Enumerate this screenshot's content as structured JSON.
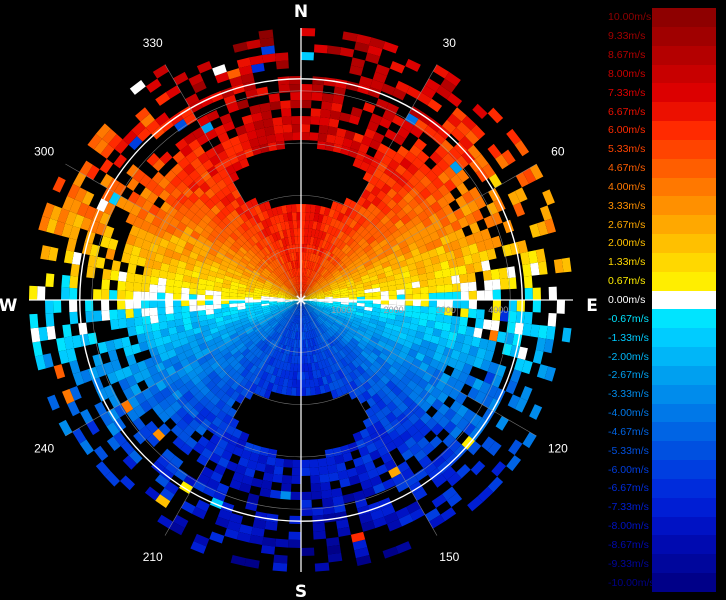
{
  "chart_data": {
    "type": "heatmap",
    "subtype": "polar-radial-velocity-ppi",
    "compass_labels": {
      "north": "N",
      "east": "E",
      "south": "S",
      "west": "W"
    },
    "azimuth_labels": [
      "30",
      "60",
      "120",
      "150",
      "210",
      "240",
      "300",
      "330"
    ],
    "azimuth_label_values": [
      30,
      60,
      120,
      150,
      210,
      240,
      300,
      330
    ],
    "range_labels": [
      "1000",
      "2000",
      "3000",
      "4000"
    ],
    "range_values": [
      1000,
      2000,
      3000,
      4000
    ],
    "max_range": 5200,
    "color_scale": [
      {
        "label": "10.00m/s",
        "value": 10.0,
        "color": "#8e0000"
      },
      {
        "label": "9.33m/s",
        "value": 9.33,
        "color": "#a00000"
      },
      {
        "label": "8.67m/s",
        "value": 8.67,
        "color": "#b40000"
      },
      {
        "label": "8.00m/s",
        "value": 8.0,
        "color": "#c80000"
      },
      {
        "label": "7.33m/s",
        "value": 7.33,
        "color": "#dc0000"
      },
      {
        "label": "6.67m/s",
        "value": 6.67,
        "color": "#ec1000"
      },
      {
        "label": "6.00m/s",
        "value": 6.0,
        "color": "#ff2a00"
      },
      {
        "label": "5.33m/s",
        "value": 5.33,
        "color": "#ff4400"
      },
      {
        "label": "4.67m/s",
        "value": 4.67,
        "color": "#ff5e00"
      },
      {
        "label": "4.00m/s",
        "value": 4.0,
        "color": "#ff7800"
      },
      {
        "label": "3.33m/s",
        "value": 3.33,
        "color": "#ff9000"
      },
      {
        "label": "2.67m/s",
        "value": 2.67,
        "color": "#ffa800"
      },
      {
        "label": "2.00m/s",
        "value": 2.0,
        "color": "#ffc000"
      },
      {
        "label": "1.33m/s",
        "value": 1.33,
        "color": "#ffd800"
      },
      {
        "label": "0.67m/s",
        "value": 0.67,
        "color": "#ffee00"
      },
      {
        "label": "0.00m/s",
        "value": 0.0,
        "color": "#ffffff"
      },
      {
        "label": "-0.67m/s",
        "value": -0.67,
        "color": "#00e4ff"
      },
      {
        "label": "-1.33m/s",
        "value": -1.33,
        "color": "#00ccff"
      },
      {
        "label": "-2.00m/s",
        "value": -2.0,
        "color": "#00b6f8"
      },
      {
        "label": "-2.67m/s",
        "value": -2.67,
        "color": "#00a0f0"
      },
      {
        "label": "-3.33m/s",
        "value": -3.33,
        "color": "#008cec"
      },
      {
        "label": "-4.00m/s",
        "value": -4.0,
        "color": "#0078e8"
      },
      {
        "label": "-4.67m/s",
        "value": -4.67,
        "color": "#0064e4"
      },
      {
        "label": "-5.33m/s",
        "value": -5.33,
        "color": "#0050e0"
      },
      {
        "label": "-6.00m/s",
        "value": -6.0,
        "color": "#003ee0"
      },
      {
        "label": "-6.67m/s",
        "value": -6.67,
        "color": "#002cdc"
      },
      {
        "label": "-7.33m/s",
        "value": -7.33,
        "color": "#001ed4"
      },
      {
        "label": "-8.00m/s",
        "value": -8.0,
        "color": "#0012c4"
      },
      {
        "label": "-8.67m/s",
        "value": -8.67,
        "color": "#000ab0"
      },
      {
        "label": "-9.33m/s",
        "value": -9.33,
        "color": "#00069c"
      },
      {
        "label": "-10.00m/s",
        "value": -10.0,
        "color": "#000088"
      }
    ],
    "velocity_field": {
      "description_values": "radial velocity ~ +9 m/s toward north, ~ -9 m/s toward south, zero line along west-east",
      "peak_velocity": 9.0,
      "no_data_regions": [
        {
          "center_azimuth": 0,
          "center_range": 2400,
          "azimuth_halfwidth": 30,
          "range_halfwidth": 600
        },
        {
          "center_azimuth": 180,
          "center_range": 2400,
          "azimuth_halfwidth": 32,
          "range_halfwidth": 600
        }
      ]
    },
    "grid": true,
    "legend_position": "right"
  },
  "colors": {
    "background": "#000000",
    "grid": "#a0a0a0",
    "outer_ring": "#ffffff",
    "range_label": "#9a9aa8"
  }
}
